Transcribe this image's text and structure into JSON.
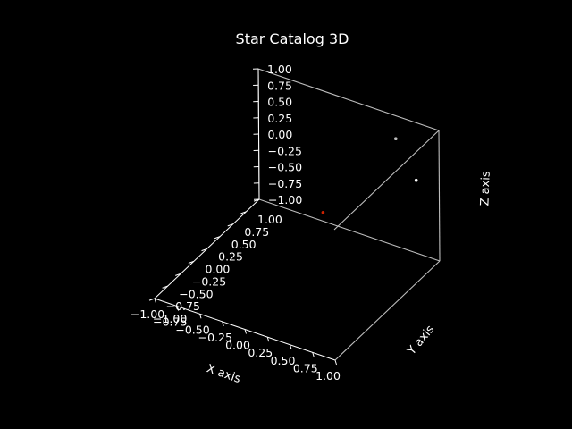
{
  "chart_data": {
    "type": "scatter",
    "projection": "3d",
    "title": "Star Catalog 3D",
    "xlabel": "X axis",
    "ylabel": "Y axis",
    "zlabel": "Z axis",
    "xlim": [
      -1.0,
      1.0
    ],
    "ylim": [
      -1.0,
      1.0
    ],
    "zlim": [
      -1.0,
      1.0
    ],
    "x_ticks": [
      "−1.00",
      "−0.75",
      "−0.50",
      "−0.25",
      "0.00",
      "0.25",
      "0.50",
      "0.75",
      "1.00"
    ],
    "y_ticks": [
      "−1.00",
      "−0.75",
      "−0.50",
      "−0.25",
      "0.00",
      "0.25",
      "0.50",
      "0.75",
      "1.00"
    ],
    "z_ticks": [
      "−1.00",
      "−0.75",
      "−0.50",
      "−0.25",
      "0.00",
      "0.25",
      "0.50",
      "0.75",
      "1.00"
    ],
    "background": "#000000",
    "grid": false,
    "points": [
      {
        "x": 0.55,
        "y": 0.95,
        "z": 0.7,
        "color": "#bbbbbb"
      },
      {
        "x": 0.95,
        "y": 0.65,
        "z": 0.48,
        "color": "#ffffff"
      },
      {
        "x": 0.0,
        "y": 0.5,
        "z": -0.35,
        "color": "#cc2200"
      }
    ]
  }
}
